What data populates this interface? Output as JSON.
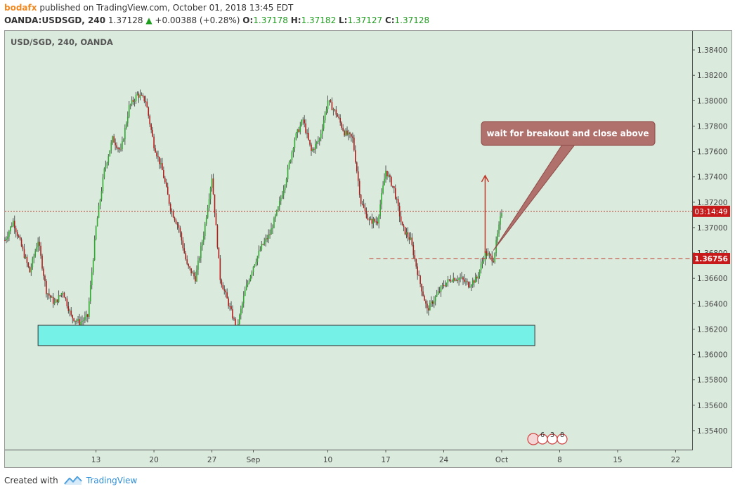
{
  "header": {
    "author": "bodafx",
    "published_text": "published on TradingView.com, October 01, 2018 13:45 EDT",
    "symbol": "OANDA:USDSGD, 240",
    "last": "1.37128",
    "change": "+0.00388 (+0.28%)",
    "o_label": "O:",
    "o_value": "1.37178",
    "h_label": "H:",
    "h_value": "1.37182",
    "l_label": "L:",
    "l_value": "1.37127",
    "c_label": "C:",
    "c_value": "1.37128"
  },
  "footer": {
    "created_with": "Created with",
    "brand": "TradingView"
  },
  "colors": {
    "background": "#daeadc",
    "up": "#2eac2e",
    "down": "#b11c1c",
    "zone": "#75f1e7",
    "note": "#b0706c",
    "price_line": "#c0392b"
  },
  "chart_data": {
    "type": "candlestick",
    "title": "USD/SGD, 240, OANDA",
    "y_ticks": [
      "1.38400",
      "1.38200",
      "1.38000",
      "1.37800",
      "1.37600",
      "1.37400",
      "1.37200",
      "1.37000",
      "1.36800",
      "1.36600",
      "1.36400",
      "1.36200",
      "1.36000",
      "1.35800",
      "1.35600",
      "1.35400"
    ],
    "ylim": [
      1.3525,
      1.3855
    ],
    "x_ticks": [
      "13",
      "20",
      "27",
      "Sep",
      "10",
      "17",
      "24",
      "Oct",
      "8",
      "15",
      "22"
    ],
    "x_tick_dates": [
      "2018-08-13",
      "2018-08-20",
      "2018-08-27",
      "2018-09-01",
      "2018-09-10",
      "2018-09-17",
      "2018-09-24",
      "2018-10-01",
      "2018-10-08",
      "2018-10-15",
      "2018-10-22"
    ],
    "xlim": [
      "2018-08-02",
      "2018-10-24"
    ],
    "price_series": [
      [
        "2018-08-02",
        1.369
      ],
      [
        "2018-08-03",
        1.3705
      ],
      [
        "2018-08-05",
        1.3665
      ],
      [
        "2018-08-06",
        1.369
      ],
      [
        "2018-08-07",
        1.365
      ],
      [
        "2018-08-08",
        1.364
      ],
      [
        "2018-08-09",
        1.365
      ],
      [
        "2018-08-10",
        1.363
      ],
      [
        "2018-08-11",
        1.3625
      ],
      [
        "2018-08-12",
        1.363
      ],
      [
        "2018-08-13",
        1.37
      ],
      [
        "2018-08-14",
        1.3745
      ],
      [
        "2018-08-15",
        1.377
      ],
      [
        "2018-08-16",
        1.376
      ],
      [
        "2018-08-17",
        1.3795
      ],
      [
        "2018-08-18",
        1.3805
      ],
      [
        "2018-08-19",
        1.38
      ],
      [
        "2018-08-20",
        1.3765
      ],
      [
        "2018-08-21",
        1.3745
      ],
      [
        "2018-08-22",
        1.3715
      ],
      [
        "2018-08-23",
        1.37
      ],
      [
        "2018-08-24",
        1.367
      ],
      [
        "2018-08-25",
        1.366
      ],
      [
        "2018-08-26",
        1.3695
      ],
      [
        "2018-08-27",
        1.374
      ],
      [
        "2018-08-28",
        1.366
      ],
      [
        "2018-08-29",
        1.364
      ],
      [
        "2018-08-30",
        1.362
      ],
      [
        "2018-08-31",
        1.365
      ],
      [
        "2018-09-01",
        1.367
      ],
      [
        "2018-09-02",
        1.3685
      ],
      [
        "2018-09-03",
        1.3695
      ],
      [
        "2018-09-04",
        1.3715
      ],
      [
        "2018-09-05",
        1.374
      ],
      [
        "2018-09-06",
        1.377
      ],
      [
        "2018-09-07",
        1.3785
      ],
      [
        "2018-09-08",
        1.376
      ],
      [
        "2018-09-09",
        1.377
      ],
      [
        "2018-09-10",
        1.38
      ],
      [
        "2018-09-11",
        1.379
      ],
      [
        "2018-09-12",
        1.3775
      ],
      [
        "2018-09-13",
        1.377
      ],
      [
        "2018-09-14",
        1.372
      ],
      [
        "2018-09-15",
        1.3705
      ],
      [
        "2018-09-16",
        1.3705
      ],
      [
        "2018-09-17",
        1.3745
      ],
      [
        "2018-09-18",
        1.373
      ],
      [
        "2018-09-19",
        1.37
      ],
      [
        "2018-09-20",
        1.369
      ],
      [
        "2018-09-21",
        1.366
      ],
      [
        "2018-09-22",
        1.3635
      ],
      [
        "2018-09-23",
        1.3645
      ],
      [
        "2018-09-24",
        1.3655
      ],
      [
        "2018-09-25",
        1.366
      ],
      [
        "2018-09-26",
        1.366
      ],
      [
        "2018-09-27",
        1.3655
      ],
      [
        "2018-09-28",
        1.366
      ],
      [
        "2018-09-29",
        1.368
      ],
      [
        "2018-09-30",
        1.3675
      ],
      [
        "2018-10-01",
        1.3713
      ]
    ],
    "last_price": 1.37128,
    "price_line_label": "03:14:49",
    "level_line": 1.36756,
    "level_label": "1.36756",
    "support_zone": [
      1.3607,
      1.3623
    ],
    "support_zone_dates": [
      "2018-08-06",
      "2018-10-05"
    ],
    "arrow": {
      "date": "2018-09-29",
      "from": 1.368,
      "to": 1.3741
    },
    "annotation": {
      "text": "wait for breakout and close above",
      "target_date": "2018-09-30",
      "target_price": 1.3682
    },
    "events": [
      "6",
      "3",
      "8"
    ]
  }
}
